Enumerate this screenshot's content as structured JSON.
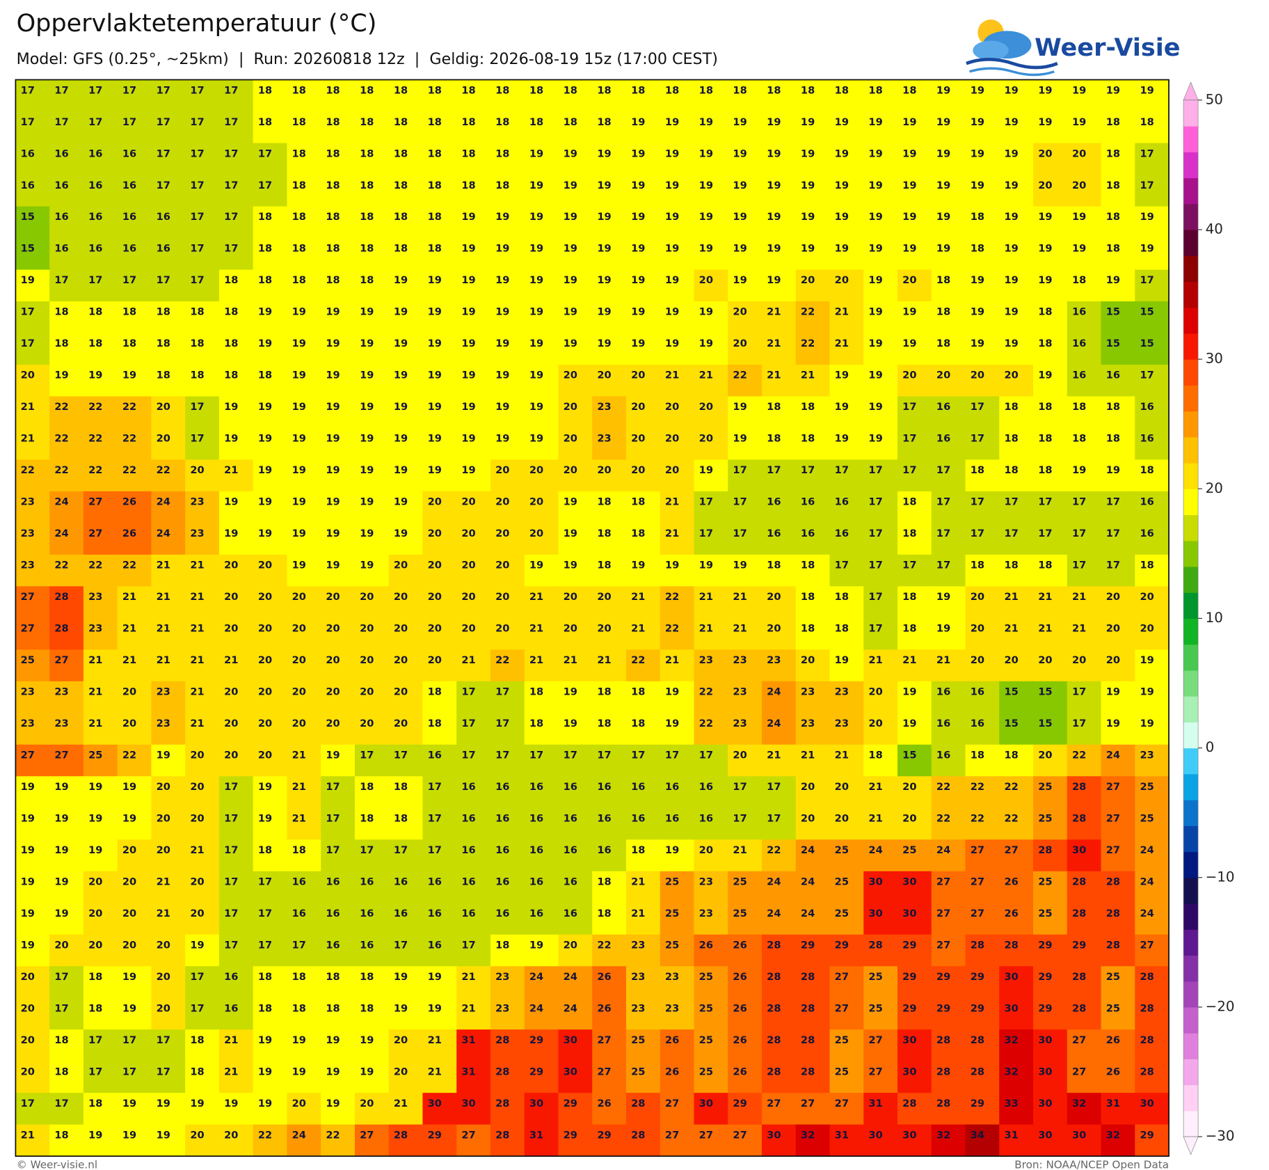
{
  "chart_data": {
    "type": "grid-map",
    "title": "Oppervlaktetemperatuur (°C)",
    "subtitle": "Model: GFS (0.25°, ~25km)  |  Run: 20260818 12z  |  Geldig: 2026-08-19 15z (17:00 CEST)",
    "logo": "Weer-Visie",
    "credit": "© Weer-visie.nl",
    "source": "Bron: NOAA/NCEP Open Data",
    "values": [
      [
        17,
        17,
        17,
        17,
        17,
        17,
        17,
        18,
        18,
        18,
        18,
        18,
        18,
        18,
        18,
        18,
        18,
        18,
        18,
        18,
        18,
        18,
        18,
        18,
        18,
        18,
        18,
        19,
        19,
        19,
        19,
        19,
        19,
        19
      ],
      [
        17,
        17,
        17,
        17,
        17,
        17,
        17,
        18,
        18,
        18,
        18,
        18,
        18,
        18,
        18,
        18,
        18,
        18,
        19,
        19,
        19,
        19,
        19,
        19,
        19,
        19,
        19,
        19,
        19,
        19,
        19,
        19,
        18,
        18
      ],
      [
        16,
        16,
        16,
        16,
        17,
        17,
        17,
        17,
        18,
        18,
        18,
        18,
        18,
        18,
        18,
        19,
        19,
        19,
        19,
        19,
        19,
        19,
        19,
        19,
        19,
        19,
        19,
        19,
        19,
        19,
        20,
        20,
        18,
        17
      ],
      [
        16,
        16,
        16,
        16,
        17,
        17,
        17,
        17,
        18,
        18,
        18,
        18,
        18,
        18,
        18,
        19,
        19,
        19,
        19,
        19,
        19,
        19,
        19,
        19,
        19,
        19,
        19,
        19,
        19,
        19,
        20,
        20,
        18,
        17
      ],
      [
        15,
        16,
        16,
        16,
        16,
        17,
        17,
        18,
        18,
        18,
        18,
        18,
        18,
        19,
        19,
        19,
        19,
        19,
        19,
        19,
        19,
        19,
        19,
        19,
        19,
        19,
        19,
        19,
        18,
        19,
        19,
        19,
        18,
        19
      ],
      [
        15,
        16,
        16,
        16,
        16,
        17,
        17,
        18,
        18,
        18,
        18,
        18,
        18,
        19,
        19,
        19,
        19,
        19,
        19,
        19,
        19,
        19,
        19,
        19,
        19,
        19,
        19,
        19,
        18,
        19,
        19,
        19,
        18,
        19
      ],
      [
        19,
        17,
        17,
        17,
        17,
        17,
        18,
        18,
        18,
        18,
        18,
        19,
        19,
        19,
        19,
        19,
        19,
        19,
        19,
        19,
        20,
        19,
        19,
        20,
        20,
        19,
        20,
        18,
        19,
        19,
        19,
        18,
        19,
        17
      ],
      [
        17,
        18,
        18,
        18,
        18,
        18,
        18,
        19,
        19,
        19,
        19,
        19,
        19,
        19,
        19,
        19,
        19,
        19,
        19,
        19,
        19,
        20,
        21,
        22,
        21,
        19,
        19,
        18,
        19,
        19,
        18,
        16,
        15,
        15
      ],
      [
        17,
        18,
        18,
        18,
        18,
        18,
        18,
        19,
        19,
        19,
        19,
        19,
        19,
        19,
        19,
        19,
        19,
        19,
        19,
        19,
        19,
        20,
        21,
        22,
        21,
        19,
        19,
        18,
        19,
        19,
        18,
        16,
        15,
        15
      ],
      [
        20,
        19,
        19,
        19,
        18,
        18,
        18,
        18,
        19,
        19,
        19,
        19,
        19,
        19,
        19,
        19,
        20,
        20,
        20,
        21,
        21,
        22,
        21,
        21,
        19,
        19,
        20,
        20,
        20,
        20,
        19,
        16,
        16,
        17
      ],
      [
        21,
        22,
        22,
        22,
        20,
        17,
        19,
        19,
        19,
        19,
        19,
        19,
        19,
        19,
        19,
        19,
        20,
        23,
        20,
        20,
        20,
        19,
        18,
        18,
        19,
        19,
        17,
        16,
        17,
        18,
        18,
        18,
        18,
        16
      ],
      [
        21,
        22,
        22,
        22,
        20,
        17,
        19,
        19,
        19,
        19,
        19,
        19,
        19,
        19,
        19,
        19,
        20,
        23,
        20,
        20,
        20,
        19,
        18,
        18,
        19,
        19,
        17,
        16,
        17,
        18,
        18,
        18,
        18,
        16
      ],
      [
        22,
        22,
        22,
        22,
        22,
        20,
        21,
        19,
        19,
        19,
        19,
        19,
        19,
        19,
        20,
        20,
        20,
        20,
        20,
        20,
        19,
        17,
        17,
        17,
        17,
        17,
        17,
        17,
        18,
        18,
        18,
        19,
        19,
        18
      ],
      [
        23,
        24,
        27,
        26,
        24,
        23,
        19,
        19,
        19,
        19,
        19,
        19,
        20,
        20,
        20,
        20,
        19,
        18,
        18,
        21,
        17,
        17,
        16,
        16,
        16,
        17,
        18,
        17,
        17,
        17,
        17,
        17,
        17,
        16
      ],
      [
        23,
        24,
        27,
        26,
        24,
        23,
        19,
        19,
        19,
        19,
        19,
        19,
        20,
        20,
        20,
        20,
        19,
        18,
        18,
        21,
        17,
        17,
        16,
        16,
        16,
        17,
        18,
        17,
        17,
        17,
        17,
        17,
        17,
        16
      ],
      [
        23,
        22,
        22,
        22,
        21,
        21,
        20,
        20,
        19,
        19,
        19,
        20,
        20,
        20,
        20,
        19,
        19,
        18,
        19,
        19,
        19,
        19,
        18,
        18,
        17,
        17,
        17,
        17,
        18,
        18,
        18,
        17,
        17,
        18
      ],
      [
        27,
        28,
        23,
        21,
        21,
        21,
        20,
        20,
        20,
        20,
        20,
        20,
        20,
        20,
        20,
        21,
        20,
        20,
        21,
        22,
        21,
        21,
        20,
        18,
        18,
        17,
        18,
        19,
        20,
        21,
        21,
        21,
        20,
        20
      ],
      [
        27,
        28,
        23,
        21,
        21,
        21,
        20,
        20,
        20,
        20,
        20,
        20,
        20,
        20,
        20,
        21,
        20,
        20,
        21,
        22,
        21,
        21,
        20,
        18,
        18,
        17,
        18,
        19,
        20,
        21,
        21,
        21,
        20,
        20
      ],
      [
        25,
        27,
        21,
        21,
        21,
        21,
        21,
        20,
        20,
        20,
        20,
        20,
        20,
        21,
        22,
        21,
        21,
        21,
        22,
        21,
        23,
        23,
        23,
        20,
        19,
        21,
        21,
        21,
        20,
        20,
        20,
        20,
        20,
        19
      ],
      [
        23,
        23,
        21,
        20,
        23,
        21,
        20,
        20,
        20,
        20,
        20,
        20,
        18,
        17,
        17,
        18,
        19,
        18,
        18,
        19,
        22,
        23,
        24,
        23,
        23,
        20,
        19,
        16,
        16,
        15,
        15,
        17,
        19,
        19
      ],
      [
        23,
        23,
        21,
        20,
        23,
        21,
        20,
        20,
        20,
        20,
        20,
        20,
        18,
        17,
        17,
        18,
        19,
        18,
        18,
        19,
        22,
        23,
        24,
        23,
        23,
        20,
        19,
        16,
        16,
        15,
        15,
        17,
        19,
        19
      ],
      [
        27,
        27,
        25,
        22,
        19,
        20,
        20,
        20,
        21,
        19,
        17,
        17,
        16,
        17,
        17,
        17,
        17,
        17,
        17,
        17,
        17,
        20,
        21,
        21,
        21,
        18,
        15,
        16,
        18,
        18,
        20,
        22,
        24,
        23
      ],
      [
        19,
        19,
        19,
        19,
        20,
        20,
        17,
        19,
        21,
        17,
        18,
        18,
        17,
        16,
        16,
        16,
        16,
        16,
        16,
        16,
        16,
        17,
        17,
        20,
        20,
        21,
        20,
        22,
        22,
        22,
        25,
        28,
        27,
        25
      ],
      [
        19,
        19,
        19,
        19,
        20,
        20,
        17,
        19,
        21,
        17,
        18,
        18,
        17,
        16,
        16,
        16,
        16,
        16,
        16,
        16,
        16,
        17,
        17,
        20,
        20,
        21,
        20,
        22,
        22,
        22,
        25,
        28,
        27,
        25
      ],
      [
        19,
        19,
        19,
        20,
        20,
        21,
        17,
        18,
        18,
        17,
        17,
        17,
        17,
        16,
        16,
        16,
        16,
        16,
        18,
        19,
        20,
        21,
        22,
        24,
        25,
        24,
        25,
        24,
        27,
        27,
        28,
        30,
        27,
        24
      ],
      [
        19,
        19,
        20,
        20,
        21,
        20,
        17,
        17,
        16,
        16,
        16,
        16,
        16,
        16,
        16,
        16,
        16,
        18,
        21,
        25,
        23,
        25,
        24,
        24,
        25,
        30,
        30,
        27,
        27,
        26,
        25,
        28,
        28,
        24
      ],
      [
        19,
        19,
        20,
        20,
        21,
        20,
        17,
        17,
        16,
        16,
        16,
        16,
        16,
        16,
        16,
        16,
        16,
        18,
        21,
        25,
        23,
        25,
        24,
        24,
        25,
        30,
        30,
        27,
        27,
        26,
        25,
        28,
        28,
        24
      ],
      [
        19,
        20,
        20,
        20,
        20,
        19,
        17,
        17,
        17,
        16,
        16,
        17,
        16,
        17,
        18,
        19,
        20,
        22,
        23,
        25,
        26,
        26,
        28,
        29,
        29,
        28,
        29,
        27,
        28,
        28,
        29,
        29,
        28,
        27
      ],
      [
        20,
        17,
        18,
        19,
        20,
        17,
        16,
        18,
        18,
        18,
        18,
        19,
        19,
        21,
        23,
        24,
        24,
        26,
        23,
        23,
        25,
        26,
        28,
        28,
        27,
        25,
        29,
        29,
        29,
        30,
        29,
        28,
        25,
        28
      ],
      [
        20,
        17,
        18,
        19,
        20,
        17,
        16,
        18,
        18,
        18,
        18,
        19,
        19,
        21,
        23,
        24,
        24,
        26,
        23,
        23,
        25,
        26,
        28,
        28,
        27,
        25,
        29,
        29,
        29,
        30,
        29,
        28,
        25,
        28
      ],
      [
        20,
        18,
        17,
        17,
        17,
        18,
        21,
        19,
        19,
        19,
        19,
        20,
        21,
        31,
        28,
        29,
        30,
        27,
        25,
        26,
        25,
        26,
        28,
        28,
        25,
        27,
        30,
        28,
        28,
        32,
        30,
        27,
        26,
        28
      ],
      [
        20,
        18,
        17,
        17,
        17,
        18,
        21,
        19,
        19,
        19,
        19,
        20,
        21,
        31,
        28,
        29,
        30,
        27,
        25,
        26,
        25,
        26,
        28,
        28,
        25,
        27,
        30,
        28,
        28,
        32,
        30,
        27,
        26,
        28
      ],
      [
        17,
        17,
        18,
        19,
        19,
        19,
        19,
        19,
        20,
        19,
        20,
        21,
        30,
        30,
        28,
        30,
        29,
        26,
        28,
        27,
        30,
        29,
        27,
        27,
        27,
        31,
        28,
        28,
        29,
        33,
        30,
        32,
        31,
        30
      ],
      [
        21,
        18,
        19,
        19,
        19,
        20,
        20,
        22,
        24,
        22,
        27,
        28,
        29,
        27,
        28,
        31,
        29,
        29,
        28,
        27,
        27,
        27,
        30,
        32,
        31,
        30,
        30,
        32,
        34,
        31,
        30,
        30,
        32,
        29
      ]
    ],
    "colorbar": {
      "lim": [
        -30,
        50
      ],
      "ticks": [
        50,
        40,
        30,
        20,
        10,
        0,
        {
          "value": -10,
          "label": "−10"
        },
        {
          "value": -20,
          "label": "−20"
        },
        {
          "value": -30,
          "label": "−30"
        }
      ],
      "colors": [
        "#ffeefb",
        "#ffd0f4",
        "#f4a8ec",
        "#e080dc",
        "#c460cc",
        "#a444b8",
        "#8430a8",
        "#5e1890",
        "#2e0866",
        "#141050",
        "#001880",
        "#0844a8",
        "#0a74cc",
        "#0aa4e4",
        "#40ccf8",
        "#d4ffee",
        "#a8f0b4",
        "#78dc7c",
        "#48c850",
        "#10b424",
        "#00962e",
        "#40aa10",
        "#88c800",
        "#c8dc00",
        "#ffff00",
        "#ffe000",
        "#ffc000",
        "#ff9800",
        "#ff6c00",
        "#ff4800",
        "#f81800",
        "#dc0000",
        "#b40000",
        "#8c0000",
        "#5c0030",
        "#7c1060",
        "#a8108c",
        "#d830c8",
        "#ff60d8",
        "#ffb0e8"
      ]
    }
  }
}
